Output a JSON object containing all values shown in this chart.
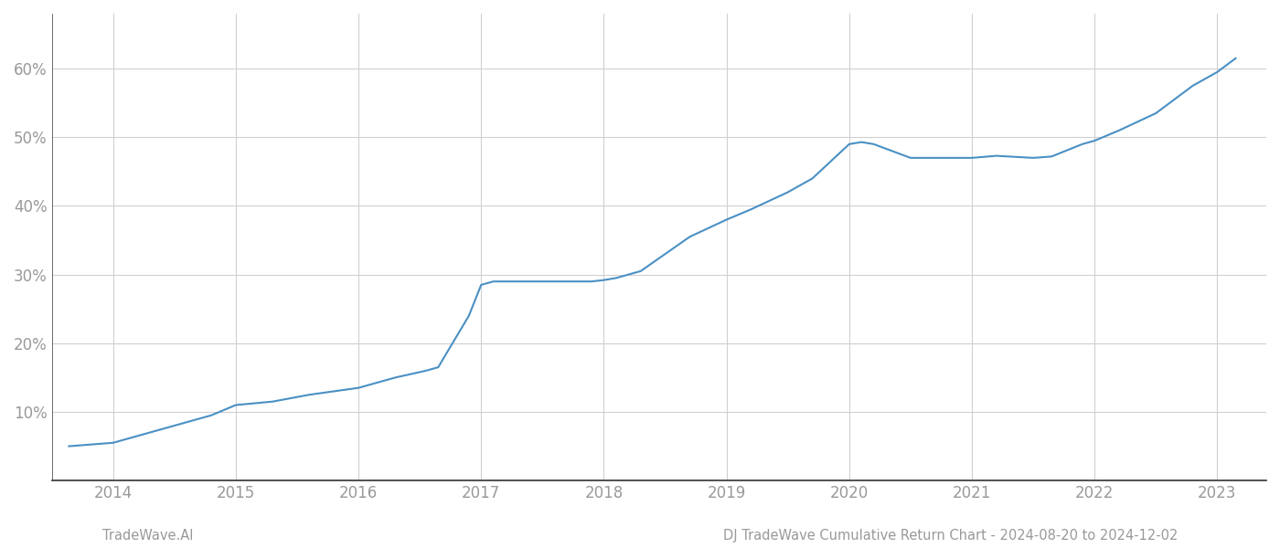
{
  "x_years": [
    2013.64,
    2014.0,
    2014.2,
    2014.5,
    2014.8,
    2015.0,
    2015.3,
    2015.6,
    2016.0,
    2016.1,
    2016.3,
    2016.55,
    2016.65,
    2016.9,
    2017.0,
    2017.1,
    2017.2,
    2017.6,
    2017.9,
    2018.0,
    2018.1,
    2018.3,
    2018.5,
    2018.7,
    2019.0,
    2019.2,
    2019.5,
    2019.7,
    2020.0,
    2020.1,
    2020.2,
    2020.5,
    2020.8,
    2021.0,
    2021.2,
    2021.5,
    2021.65,
    2021.9,
    2022.0,
    2022.2,
    2022.5,
    2022.8,
    2023.0,
    2023.15
  ],
  "y_values": [
    5.0,
    5.5,
    6.5,
    8.0,
    9.5,
    11.0,
    11.5,
    12.5,
    13.5,
    14.0,
    15.0,
    16.0,
    16.5,
    24.0,
    28.5,
    29.0,
    29.0,
    29.0,
    29.0,
    29.2,
    29.5,
    30.5,
    33.0,
    35.5,
    38.0,
    39.5,
    42.0,
    44.0,
    49.0,
    49.3,
    49.0,
    47.0,
    47.0,
    47.0,
    47.3,
    47.0,
    47.2,
    49.0,
    49.5,
    51.0,
    53.5,
    57.5,
    59.5,
    61.5
  ],
  "line_color": "#4a90c4",
  "line_width": 1.5,
  "background_color": "#ffffff",
  "grid_color": "#d0d0d0",
  "ylabel_ticks": [
    10,
    20,
    30,
    40,
    50,
    60
  ],
  "xlim": [
    2013.5,
    2023.4
  ],
  "ylim": [
    0,
    68
  ],
  "xticks": [
    2014,
    2015,
    2016,
    2017,
    2018,
    2019,
    2020,
    2021,
    2022,
    2023
  ],
  "footer_left": "TradeWave.AI",
  "footer_right": "DJ TradeWave Cumulative Return Chart - 2024-08-20 to 2024-12-02",
  "tick_color": "#999999",
  "spine_color": "#333333",
  "label_fontsize": 12,
  "footer_fontsize": 10.5
}
